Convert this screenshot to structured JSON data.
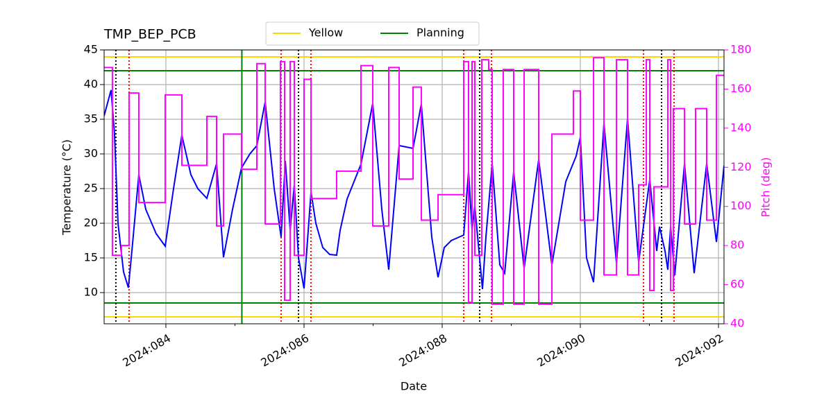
{
  "chart_data": {
    "type": "line",
    "title": "TMP_BEP_PCB",
    "x_label": "Date",
    "y_label": "Temperature (°C)",
    "y2_label": "Pitch (deg)",
    "y2_color": "#ff00ff",
    "xlim": [
      83.106,
      92.08
    ],
    "xticks": [
      {
        "value": 84,
        "label": "2024:084"
      },
      {
        "value": 86,
        "label": "2024:086"
      },
      {
        "value": 88,
        "label": "2024:088"
      },
      {
        "value": 90,
        "label": "2024:090"
      },
      {
        "value": 92,
        "label": "2024:092"
      }
    ],
    "xminorticks": [
      85,
      87,
      89,
      91
    ],
    "ylim": [
      5.5,
      45
    ],
    "yticks": [
      10,
      15,
      20,
      25,
      30,
      35,
      40,
      45
    ],
    "y2lim": [
      40,
      180
    ],
    "y2ticks": [
      40,
      60,
      80,
      100,
      120,
      140,
      160,
      180
    ],
    "grid": true,
    "legend": "top-center",
    "hlines": [
      {
        "name": "Yellow",
        "color": "#ffd700",
        "values": [
          44,
          6.5
        ]
      },
      {
        "name": "Planning",
        "color": "#008000",
        "values": [
          42,
          8.5
        ]
      }
    ],
    "vlines": [
      {
        "color": "#008000",
        "style": "solid",
        "x": [
          85.1
        ]
      },
      {
        "color": "#000000",
        "style": "dotted",
        "x": [
          83.276,
          85.92,
          88.543,
          91.176
        ]
      },
      {
        "color": "#ff0000",
        "style": "dotted",
        "x": [
          83.467,
          85.668,
          86.1,
          88.312,
          88.714,
          90.915,
          91.357
        ]
      }
    ],
    "series": [
      {
        "color": "#0000ff",
        "axis": "y",
        "x": [
          83.106,
          83.206,
          83.256,
          83.307,
          83.387,
          83.457,
          83.508,
          83.608,
          83.709,
          83.859,
          83.99,
          84.111,
          84.231,
          84.362,
          84.462,
          84.593,
          84.734,
          84.834,
          84.965,
          85.095,
          85.216,
          85.317,
          85.437,
          85.568,
          85.668,
          85.729,
          85.799,
          85.859,
          85.92,
          86.0,
          86.101,
          86.171,
          86.271,
          86.372,
          86.472,
          86.523,
          86.623,
          86.824,
          86.995,
          87.126,
          87.226,
          87.377,
          87.578,
          87.698,
          87.849,
          87.94,
          88.03,
          88.131,
          88.312,
          88.382,
          88.432,
          88.472,
          88.583,
          88.633,
          88.724,
          88.834,
          88.905,
          89.035,
          89.186,
          89.397,
          89.588,
          89.789,
          89.94,
          90.0,
          90.09,
          90.191,
          90.342,
          90.523,
          90.683,
          90.844,
          91.005,
          91.106,
          91.146,
          91.226,
          91.266,
          91.307,
          91.367,
          91.508,
          91.648,
          91.829,
          91.97,
          92.08
        ],
        "values": [
          35.5,
          39.2,
          33,
          20,
          13,
          10.7,
          16,
          27,
          22,
          18.5,
          16.7,
          25,
          32.7,
          27,
          25,
          23.6,
          28.6,
          15.1,
          22,
          28,
          30,
          31.2,
          37.5,
          25,
          18,
          29,
          19,
          25.5,
          15,
          10.6,
          24.5,
          20,
          16.5,
          15.5,
          15.4,
          19,
          23.5,
          28.5,
          37.3,
          22,
          13.3,
          31.2,
          30.8,
          37.2,
          18,
          12.2,
          16.5,
          17.5,
          18.3,
          27.5,
          19,
          22.5,
          10.5,
          18,
          28.6,
          14,
          12.8,
          27.4,
          13.5,
          29.2,
          14,
          26,
          29.7,
          32.4,
          15,
          11.5,
          34.4,
          14.2,
          35.1,
          14.4,
          26.3,
          16,
          19.5,
          16,
          13.3,
          19.5,
          12.5,
          28.6,
          12.8,
          28.6,
          17.3,
          28.3
        ]
      },
      {
        "color": "#ff00ff",
        "axis": "y2",
        "step": "post",
        "x": [
          83.106,
          83.226,
          83.357,
          83.467,
          83.608,
          83.99,
          84.231,
          84.593,
          84.734,
          84.834,
          85.095,
          85.317,
          85.437,
          85.658,
          85.719,
          85.799,
          85.859,
          86.0,
          86.101,
          86.472,
          86.824,
          86.995,
          87.226,
          87.377,
          87.578,
          87.698,
          87.94,
          88.312,
          88.382,
          88.432,
          88.472,
          88.573,
          88.673,
          88.724,
          88.884,
          89.035,
          89.186,
          89.397,
          89.588,
          89.899,
          90.0,
          90.191,
          90.342,
          90.523,
          90.683,
          90.844,
          90.955,
          91.005,
          91.065,
          91.266,
          91.307,
          91.347,
          91.508,
          91.668,
          91.829,
          91.97
        ],
        "values": [
          171,
          75,
          80,
          158,
          102,
          157,
          121,
          146,
          90,
          137,
          119,
          173,
          91,
          174,
          52,
          174,
          75,
          165,
          104,
          118,
          172,
          90,
          171,
          114,
          161,
          93,
          106,
          174,
          51,
          174,
          75,
          175,
          170,
          50,
          170,
          50,
          170,
          50,
          137,
          159,
          93,
          176,
          65,
          175,
          65,
          111,
          175,
          57,
          110,
          175,
          57,
          150,
          91,
          150,
          93,
          167
        ]
      }
    ]
  }
}
